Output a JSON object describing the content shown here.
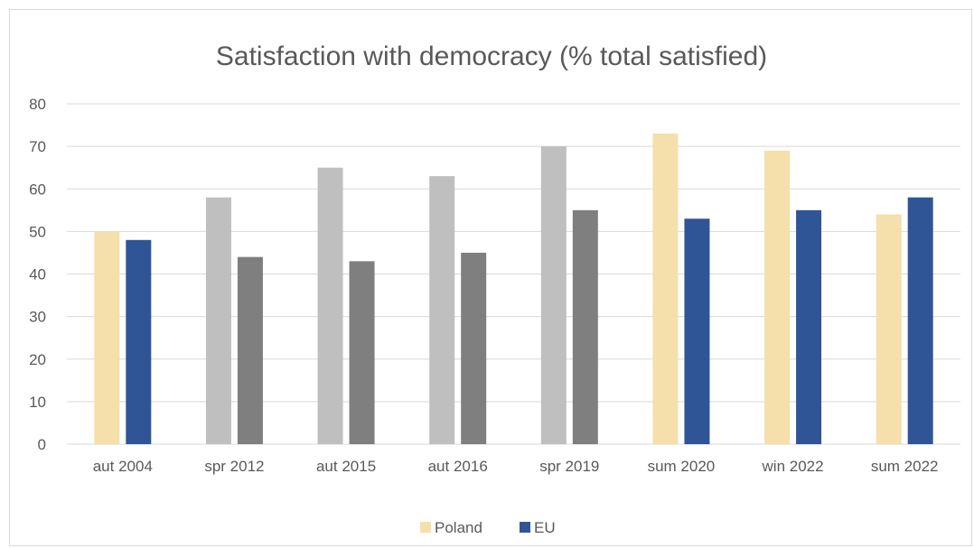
{
  "chart_data": {
    "type": "bar",
    "title": "Satisfaction with democracy (% total satisfied)",
    "xlabel": "",
    "ylabel": "",
    "ylim": [
      0,
      80
    ],
    "yticks": [
      "0",
      "10",
      "20",
      "30",
      "40",
      "50",
      "60",
      "70",
      "80"
    ],
    "grid": true,
    "legend_position": "bottom",
    "categories": [
      "aut 2004",
      "spr 2012",
      "aut 2015",
      "aut 2016",
      "spr 2019",
      "sum 2020",
      "win 2022",
      "sum 2022"
    ],
    "series": [
      {
        "name": "Poland",
        "values": [
          50,
          58,
          65,
          63,
          70,
          73,
          69,
          54
        ],
        "color": "#f5dfab",
        "point_colors": [
          "#f5dfab",
          "#bfbfbf",
          "#bfbfbf",
          "#bfbfbf",
          "#bfbfbf",
          "#f5dfab",
          "#f5dfab",
          "#f5dfab"
        ]
      },
      {
        "name": "EU",
        "values": [
          48,
          44,
          43,
          45,
          55,
          53,
          55,
          58
        ],
        "color": "#2f5597",
        "point_colors": [
          "#2f5597",
          "#7f7f7f",
          "#7f7f7f",
          "#7f7f7f",
          "#7f7f7f",
          "#2f5597",
          "#2f5597",
          "#2f5597"
        ]
      }
    ]
  }
}
